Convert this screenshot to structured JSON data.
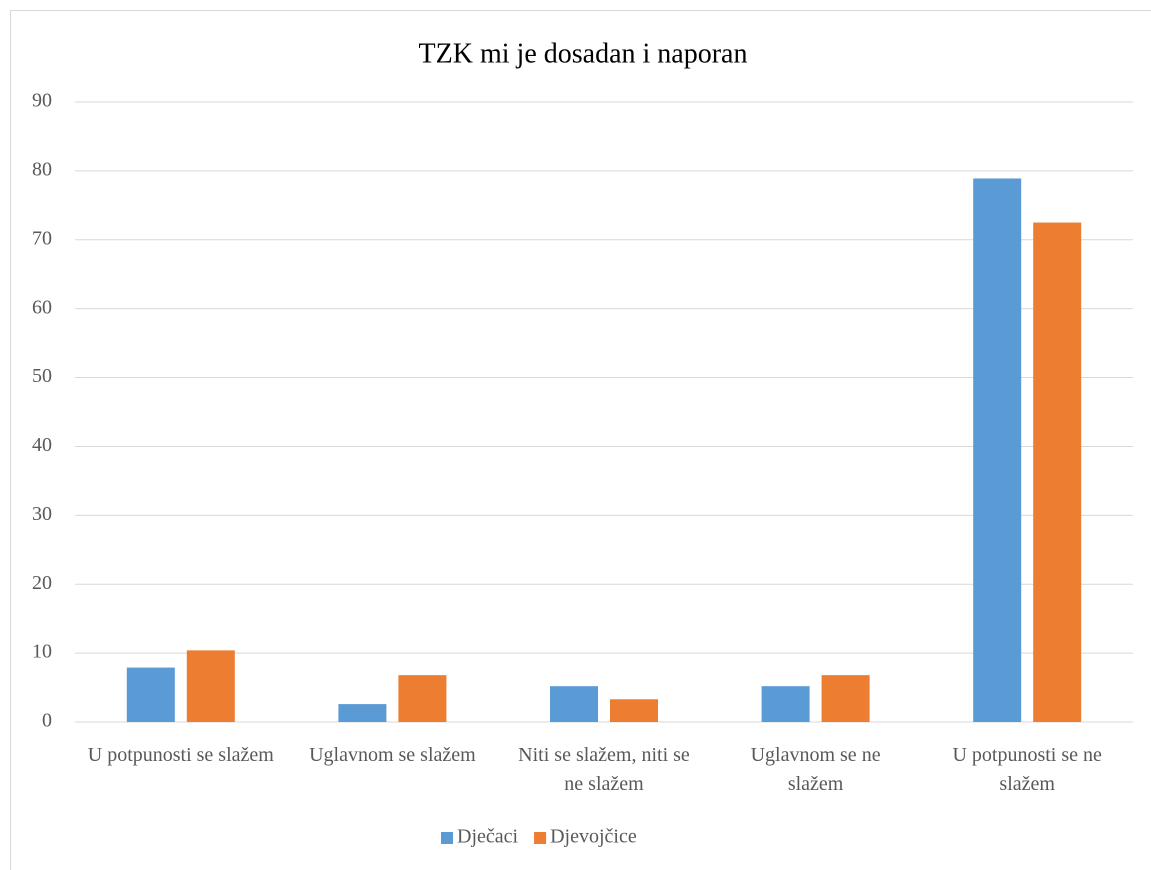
{
  "chart_data": {
    "type": "bar",
    "title": "TZK mi je dosadan i naporan",
    "categories": [
      "U potpunosti se slažem",
      "Uglavnom se slažem",
      "Niti se slažem, niti se ne slažem",
      "Uglavnom se ne slažem",
      "U potpunosti se ne slažem"
    ],
    "series": [
      {
        "name": "Dječaci",
        "color": "#5b9bd5",
        "values": [
          7.9,
          2.6,
          5.2,
          5.2,
          78.9
        ]
      },
      {
        "name": "Djevojčice",
        "color": "#ed7d31",
        "values": [
          10.4,
          6.8,
          3.3,
          6.8,
          72.5
        ]
      }
    ],
    "ylim": [
      0,
      90
    ],
    "yticks": [
      0,
      10,
      20,
      30,
      40,
      50,
      60,
      70,
      80,
      90
    ],
    "grid": true,
    "legend": "bottom"
  }
}
